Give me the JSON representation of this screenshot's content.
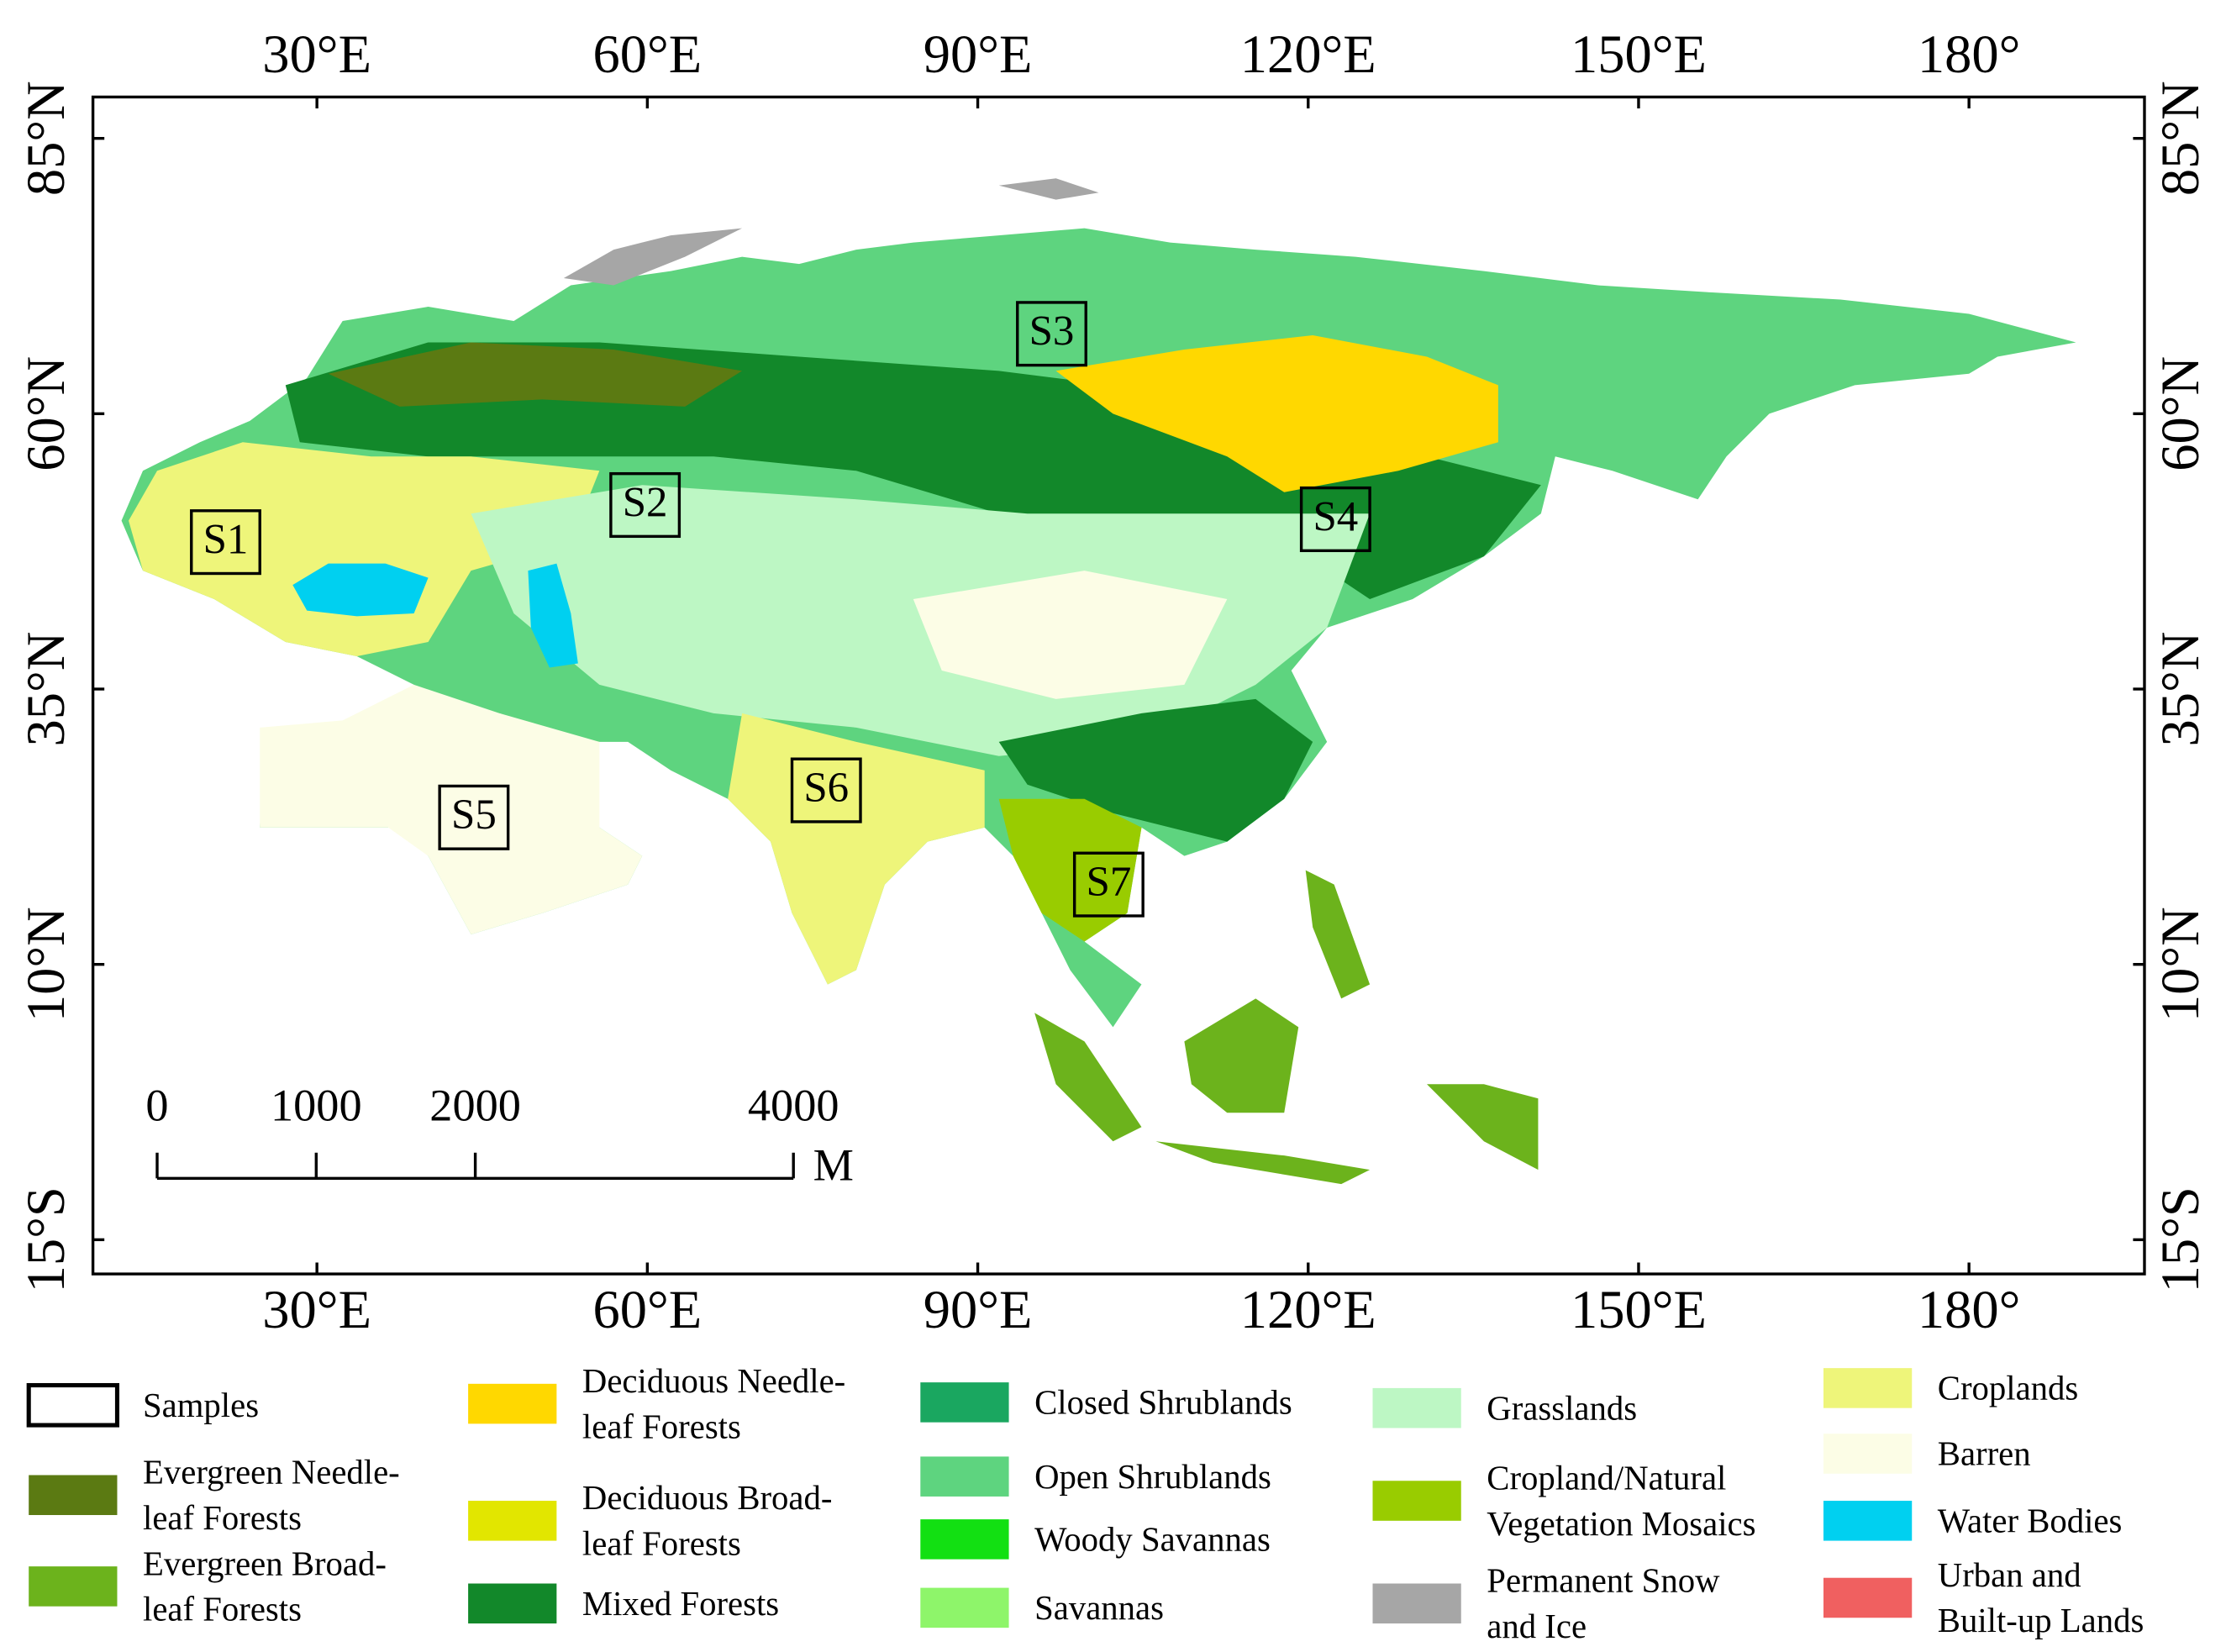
{
  "map": {
    "lon_ticks": [
      {
        "value": 30,
        "label": "30°E"
      },
      {
        "value": 60,
        "label": "60°E"
      },
      {
        "value": 90,
        "label": "90°E"
      },
      {
        "value": 120,
        "label": "120°E"
      },
      {
        "value": 150,
        "label": "150°E"
      },
      {
        "value": 180,
        "label": "180°"
      }
    ],
    "lat_ticks": [
      {
        "value": 85,
        "label": "85°N"
      },
      {
        "value": 60,
        "label": "60°N"
      },
      {
        "value": 35,
        "label": "35°N"
      },
      {
        "value": 10,
        "label": "10°N"
      },
      {
        "value": -15,
        "label": "15°S"
      }
    ],
    "samples": [
      "S1",
      "S2",
      "S3",
      "S4",
      "S5",
      "S6",
      "S7"
    ],
    "scale_bar": {
      "ticks": [
        0,
        1000,
        2000,
        4000
      ],
      "unit": "M"
    },
    "legend": [
      {
        "lines": [
          "Samples"
        ],
        "color": "#ffffff"
      },
      {
        "lines": [
          "Evergreen Needle-",
          "leaf Forests"
        ],
        "color": "#5b7a12"
      },
      {
        "lines": [
          "Evergreen Broad-",
          "leaf Forests"
        ],
        "color": "#6cb31c"
      },
      {
        "lines": [
          "Deciduous Needle-",
          "leaf Forests"
        ],
        "color": "#ffd800"
      },
      {
        "lines": [
          "Deciduous Broad-",
          "leaf Forests"
        ],
        "color": "#e2e600"
      },
      {
        "lines": [
          "Mixed Forests"
        ],
        "color": "#12882a"
      },
      {
        "lines": [
          "Closed Shrublands"
        ],
        "color": "#1aa760"
      },
      {
        "lines": [
          "Open Shrublands"
        ],
        "color": "#5ed47f"
      },
      {
        "lines": [
          "Woody Savannas"
        ],
        "color": "#12e012"
      },
      {
        "lines": [
          "Savannas"
        ],
        "color": "#8ef56a"
      },
      {
        "lines": [
          "Grasslands"
        ],
        "color": "#bdf7c4"
      },
      {
        "lines": [
          "Cropland/Natural",
          "Vegetation Mosaics"
        ],
        "color": "#99cc00"
      },
      {
        "lines": [
          "Permanent Snow",
          "and Ice"
        ],
        "color": "#a6a6a6"
      },
      {
        "lines": [
          "Croplands"
        ],
        "color": "#eef57a"
      },
      {
        "lines": [
          "Barren"
        ],
        "color": "#fcfde6"
      },
      {
        "lines": [
          "Water Bodies"
        ],
        "color": "#00d0f0"
      },
      {
        "lines": [
          "Urban and",
          "Built-up Lands"
        ],
        "color": "#f06060"
      }
    ]
  }
}
